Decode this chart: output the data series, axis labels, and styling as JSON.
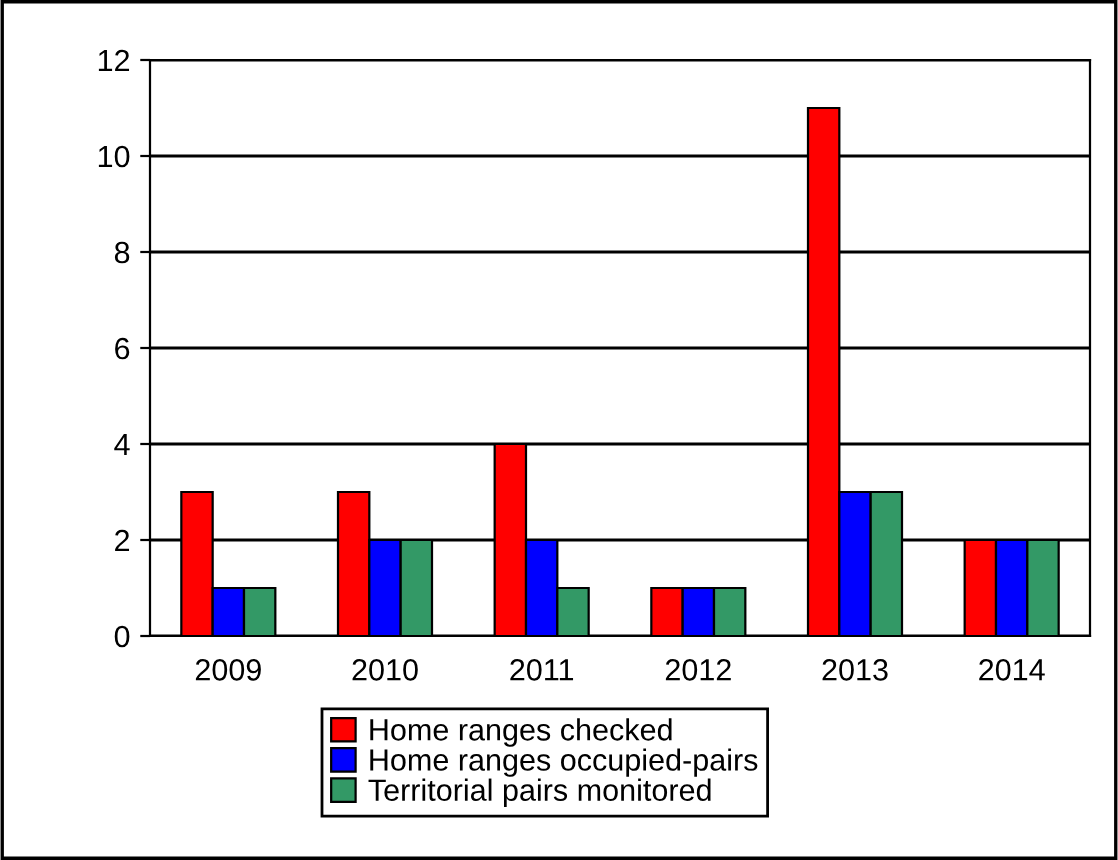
{
  "chart_data": {
    "type": "bar",
    "categories": [
      "2009",
      "2010",
      "2011",
      "2012",
      "2013",
      "2014"
    ],
    "series": [
      {
        "name": "Home ranges checked",
        "color": "#ff0000",
        "values": [
          3,
          3,
          4,
          1,
          11,
          2
        ]
      },
      {
        "name": "Home ranges occupied-pairs",
        "color": "#0000ff",
        "values": [
          1,
          2,
          2,
          1,
          3,
          2
        ]
      },
      {
        "name": "Territorial pairs monitored",
        "color": "#339966",
        "values": [
          1,
          2,
          1,
          1,
          3,
          2
        ]
      }
    ],
    "ylim": [
      0,
      12
    ],
    "yticks": [
      0,
      2,
      4,
      6,
      8,
      10,
      12
    ],
    "grid": "y",
    "legend": "bottom"
  }
}
